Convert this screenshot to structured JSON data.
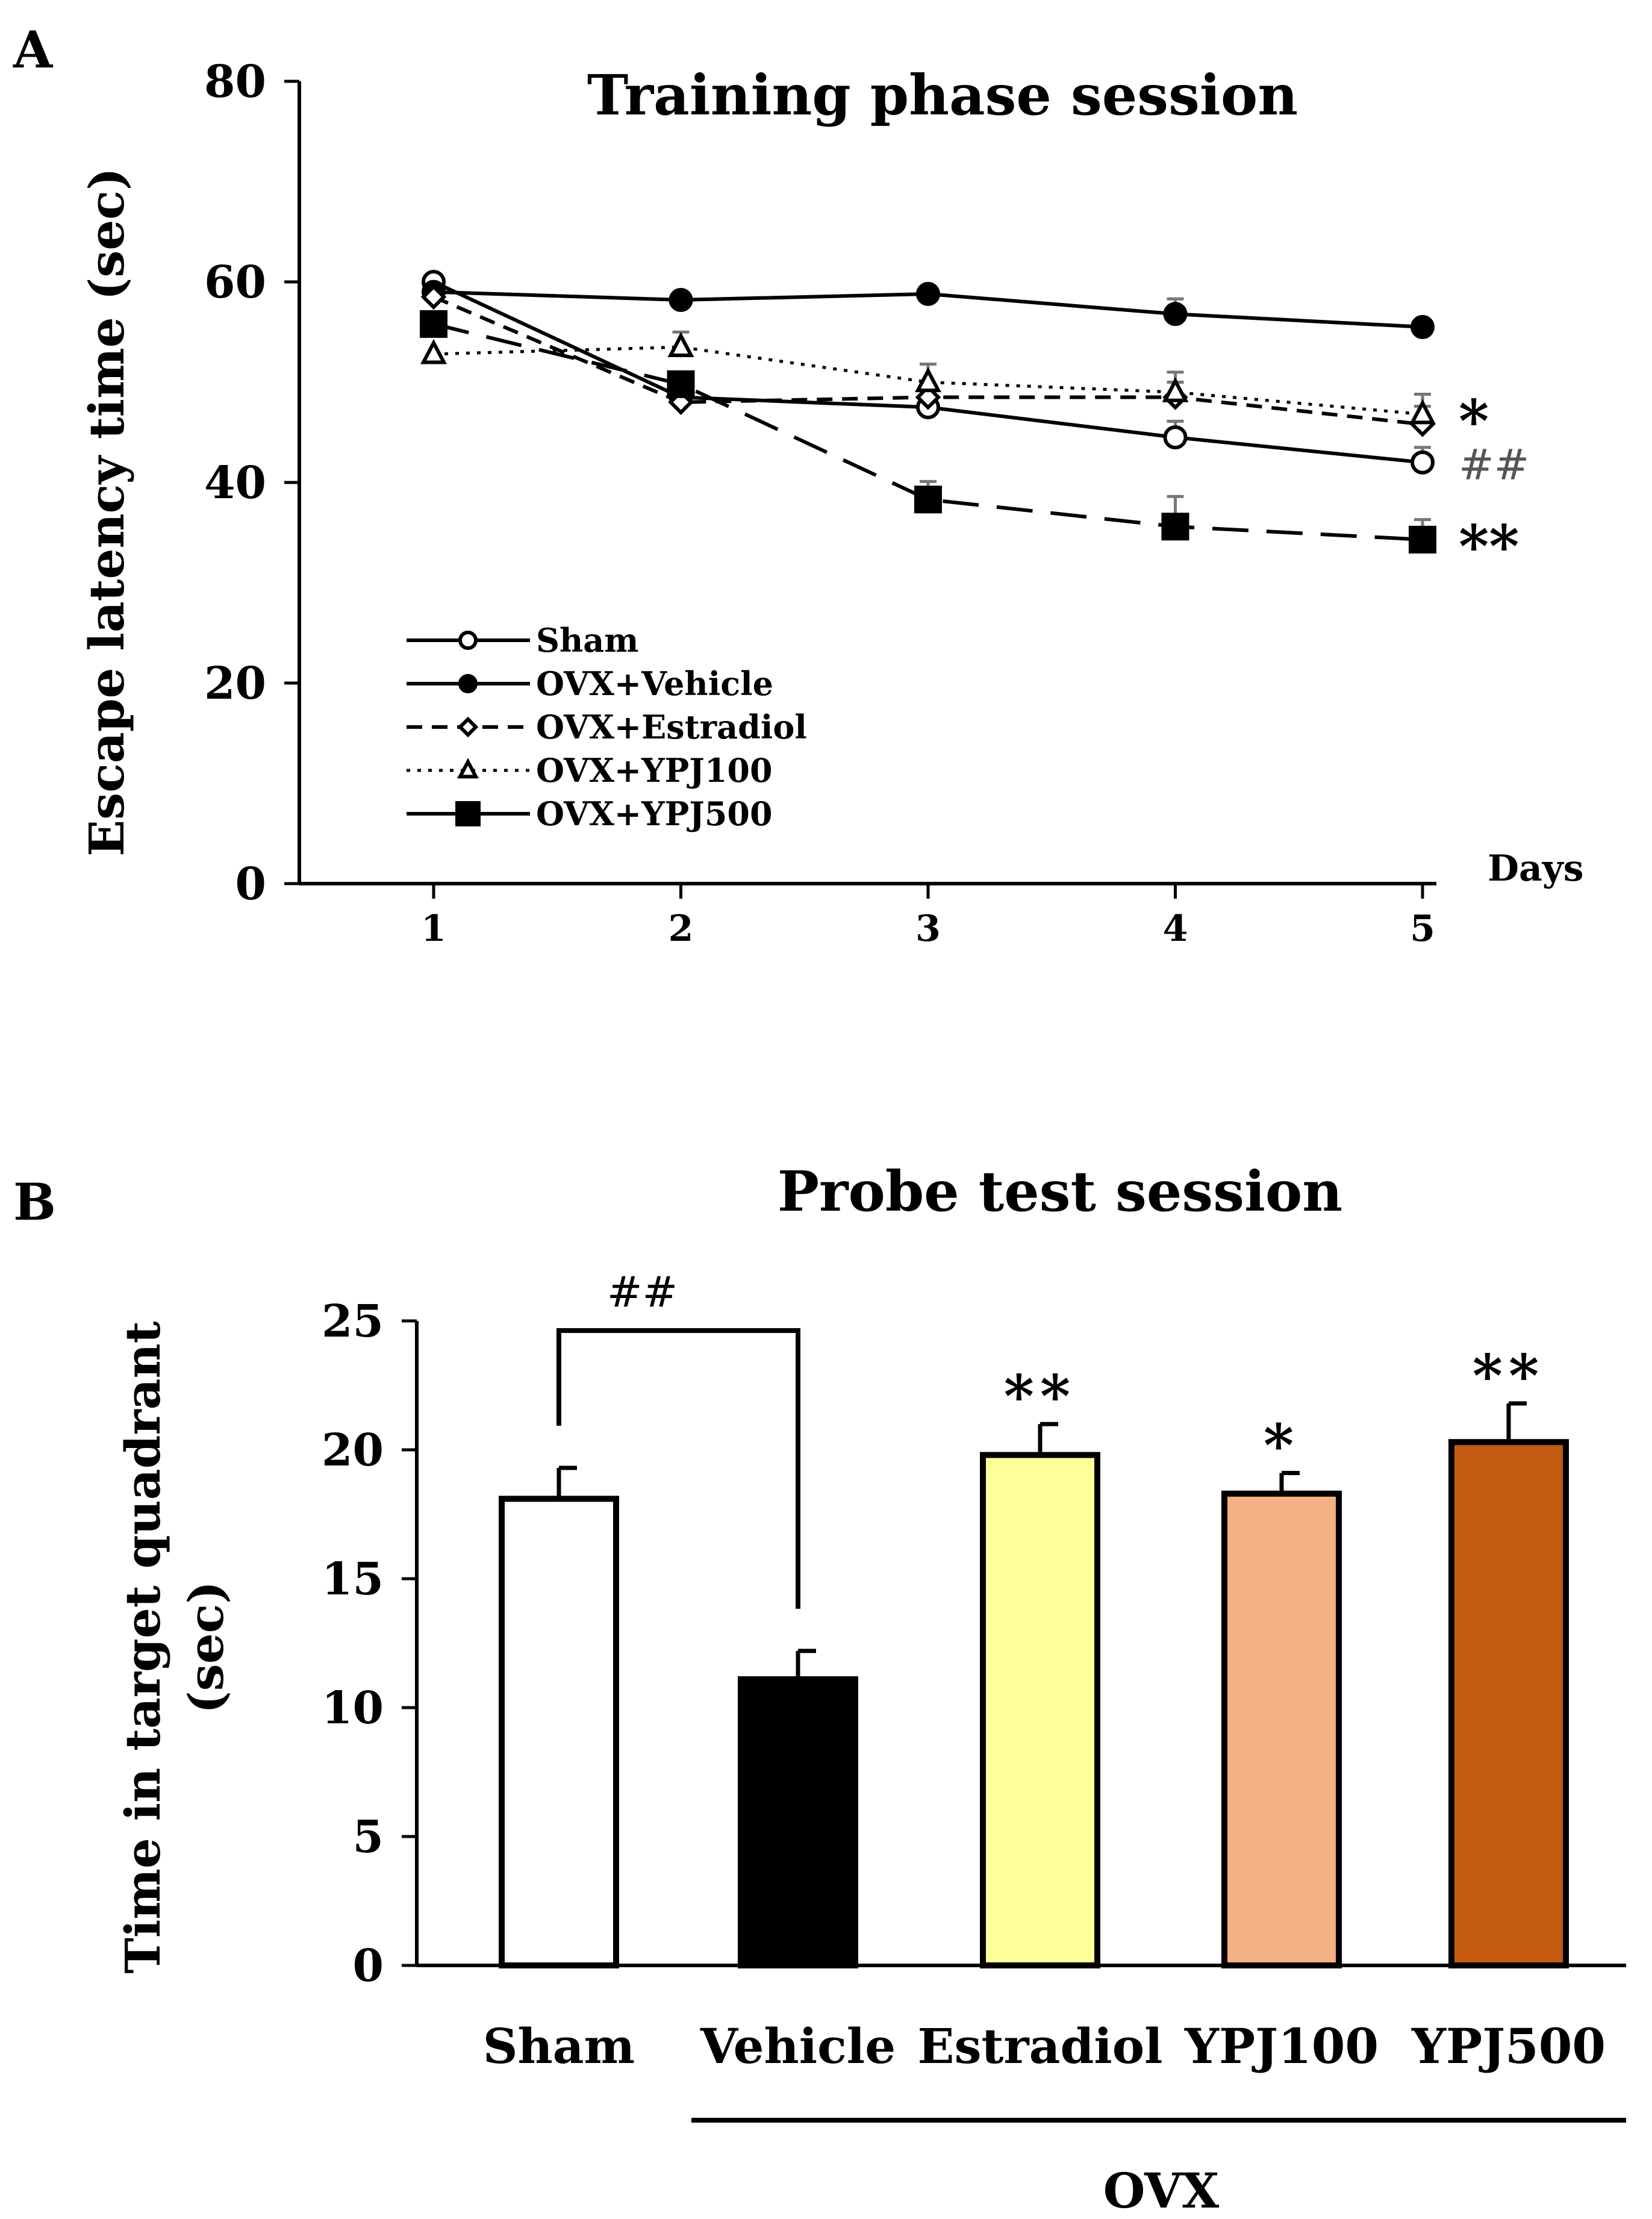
{
  "chart_data": [
    {
      "type": "line",
      "panel": "A",
      "title": "Training phase session",
      "xlabel": "Days",
      "ylabel": "Escape latency time (sec)",
      "x": [
        1,
        2,
        3,
        4,
        5
      ],
      "ylim": [
        0,
        80
      ],
      "yticks": [
        0,
        20,
        40,
        60,
        80
      ],
      "grid": false,
      "legend_position": "bottom-left",
      "series": [
        {
          "name": "Sham",
          "values": [
            60,
            48.5,
            47.5,
            44.5,
            42
          ],
          "errors": [
            0,
            0,
            0,
            1.6,
            1.5
          ],
          "marker": "circle-open",
          "line": "solid",
          "annotation": "##"
        },
        {
          "name": "OVX+Vehicle",
          "values": [
            59,
            58.2,
            58.8,
            56.8,
            55.5
          ],
          "errors": [
            0,
            0,
            0,
            1.5,
            0
          ],
          "marker": "circle-filled",
          "line": "solid",
          "annotation": ""
        },
        {
          "name": "OVX+Estradiol",
          "values": [
            58.5,
            48,
            48.5,
            48.5,
            45.8
          ],
          "errors": [
            0,
            0,
            0,
            1.5,
            1.8
          ],
          "marker": "diamond-open",
          "line": "dashed",
          "annotation": ""
        },
        {
          "name": "OVX+YPJ100",
          "values": [
            52.8,
            53.5,
            50,
            49,
            46.8
          ],
          "errors": [
            0,
            1.5,
            1.8,
            2,
            2
          ],
          "marker": "triangle-open",
          "line": "dotted",
          "annotation": "*"
        },
        {
          "name": "OVX+YPJ500",
          "values": [
            55.8,
            49.8,
            38.3,
            35.6,
            34.3
          ],
          "errors": [
            0,
            0,
            1.8,
            3,
            2
          ],
          "marker": "square-filled",
          "line": "longdash",
          "annotation": "**"
        }
      ]
    },
    {
      "type": "bar",
      "panel": "B",
      "title": "Probe test session",
      "ylabel": "Time in target quadrant (sec)",
      "xlabel": "",
      "group_label": "OVX",
      "ylim": [
        0,
        25
      ],
      "yticks": [
        0,
        5,
        10,
        15,
        20,
        25
      ],
      "categories": [
        "Sham",
        "Vehicle",
        "Estradiol",
        "YPJ100",
        "YPJ500"
      ],
      "values": [
        18.1,
        11.1,
        19.8,
        18.3,
        20.3
      ],
      "errors": [
        1.2,
        1.1,
        1.2,
        0.8,
        1.5
      ],
      "colors": [
        "#ffffff",
        "#000000",
        "#ffff99",
        "#f4b183",
        "#c55a11"
      ],
      "annotations": [
        "",
        "",
        "**",
        "*",
        "**"
      ],
      "bracket": {
        "from": "Sham",
        "to": "Vehicle",
        "label": "##"
      }
    }
  ],
  "labels": {
    "panel_a": "A",
    "panel_b": "B",
    "days_label": "Days",
    "y_title_b_line1": "Time in target quadrant",
    "y_title_b_line2": "(sec)"
  },
  "colors": {
    "axis": "#000000",
    "error_bar": "#777777"
  }
}
